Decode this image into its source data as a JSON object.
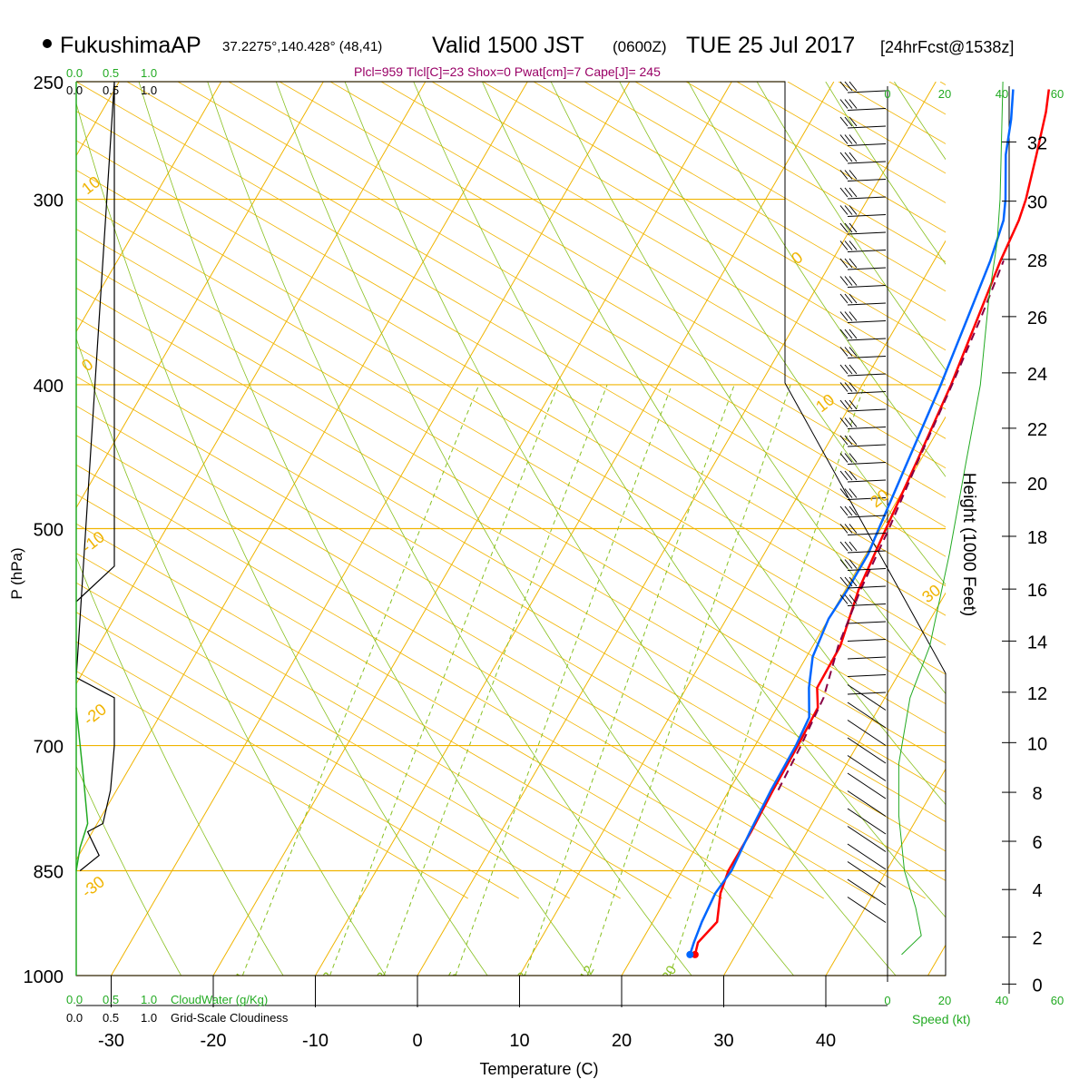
{
  "header": {
    "station": "FukushimaAP",
    "coords": "37.2275°,140.428° (48,41)",
    "valid_prefix": "Valid 1500 JST",
    "valid_z": "(0600Z)",
    "valid_date": "TUE 25 Jul 2017",
    "forecast": "[24hrFcst@1538z]",
    "indices": "Plcl=959 Tlcl[C]=23 Shox=0 Pwat[cm]=7 Cape[J]= 245"
  },
  "labels": {
    "pressure_axis": "P (hPa)",
    "temperature_axis": "Temperature (C)",
    "height_axis": "Height (1000 Feet)",
    "speed_axis": "Speed (kt)",
    "cloudwater": "CloudWater (g/Kg)",
    "cloudiness": "Grid-Scale Cloudiness"
  },
  "cloud_scale": {
    "top_green": [
      "0.0",
      "0.5",
      "1.0"
    ],
    "top_black": [
      "0.0",
      "0.5",
      "1.0"
    ],
    "bottom_green": [
      "0.0",
      "0.5",
      "1.0"
    ],
    "bottom_black": [
      "0.0",
      "0.5",
      "1.0"
    ]
  },
  "speed_ticks": [
    "0",
    "20",
    "40",
    "60"
  ],
  "colors": {
    "isotherm": "#f0b400",
    "dry_adiabat": "#88c020",
    "mixing_ratio": "#88c020",
    "temperature": "#ff0000",
    "dewpoint": "#0066ff",
    "parcel": "#880044",
    "cloudwater": "#22aa22",
    "indices": "#990066"
  },
  "chart_data": {
    "type": "line",
    "title": "FukushimaAP Valid 1500 JST (0600Z) TUE 25 Jul 2017",
    "xlabel": "Temperature (C)",
    "ylabel": "P (hPa)",
    "xlim": [
      -35,
      45
    ],
    "ylim": [
      1000,
      250
    ],
    "y_scale": "log",
    "x_ticks": [
      "-30",
      "-20",
      "-10",
      "0",
      "10",
      "20",
      "30",
      "40"
    ],
    "y_ticks": [
      "250",
      "300",
      "400",
      "500",
      "700",
      "850",
      "1000"
    ],
    "height_ticks": [
      "0",
      "2",
      "4",
      "6",
      "8",
      "10",
      "12",
      "14",
      "16",
      "18",
      "20",
      "22",
      "24",
      "26",
      "28",
      "30",
      "32"
    ],
    "isotherm_labels": [
      "10",
      "0",
      "-10",
      "-20",
      "-30",
      "0",
      "10",
      "20",
      "30"
    ],
    "mixing_ratio_labels": [
      "1",
      "2",
      "3",
      "5",
      "8",
      "12",
      "20"
    ],
    "series": [
      {
        "name": "Temperature",
        "points": [
          [
            26.0,
            968
          ],
          [
            25.6,
            950
          ],
          [
            26.3,
            920
          ],
          [
            25.0,
            880
          ],
          [
            24.5,
            850
          ],
          [
            24.5,
            800
          ],
          [
            24.3,
            750
          ],
          [
            24.2,
            700
          ],
          [
            24.0,
            660
          ],
          [
            22.8,
            640
          ],
          [
            22.7,
            600
          ],
          [
            21.3,
            550
          ],
          [
            20.5,
            500
          ],
          [
            19.7,
            450
          ],
          [
            18.7,
            400
          ],
          [
            17.5,
            360
          ],
          [
            16.5,
            330
          ],
          [
            16.0,
            310
          ],
          [
            15.5,
            300
          ],
          [
            14.0,
            280
          ],
          [
            12.5,
            262
          ],
          [
            11.5,
            253
          ]
        ]
      },
      {
        "name": "Dewpoint",
        "points": [
          [
            25.5,
            968
          ],
          [
            25.2,
            950
          ],
          [
            24.8,
            920
          ],
          [
            24.5,
            880
          ],
          [
            24.8,
            850
          ],
          [
            24.4,
            800
          ],
          [
            24.1,
            750
          ],
          [
            24.0,
            700
          ],
          [
            23.7,
            670
          ],
          [
            22.0,
            640
          ],
          [
            20.6,
            610
          ],
          [
            20.0,
            575
          ],
          [
            20.2,
            550
          ],
          [
            20.2,
            520
          ],
          [
            19.8,
            500
          ],
          [
            18.8,
            450
          ],
          [
            17.7,
            400
          ],
          [
            16.5,
            360
          ],
          [
            15.5,
            330
          ],
          [
            14.5,
            310
          ],
          [
            13.5,
            300
          ],
          [
            11.0,
            280
          ],
          [
            9.5,
            265
          ],
          [
            8.0,
            253
          ]
        ]
      },
      {
        "name": "Parcel",
        "points": [
          [
            24.8,
            750
          ],
          [
            24.5,
            700
          ],
          [
            24.0,
            650
          ],
          [
            22.5,
            600
          ],
          [
            21.5,
            550
          ],
          [
            20.8,
            500
          ],
          [
            19.8,
            450
          ],
          [
            18.8,
            400
          ],
          [
            17.8,
            360
          ],
          [
            16.8,
            330
          ]
        ]
      }
    ],
    "cloudiness": [
      [
        0.0,
        560
      ],
      [
        0.5,
        530
      ],
      [
        0.5,
        250
      ],
      [
        0.0,
        630
      ],
      [
        0.5,
        650
      ],
      [
        0.5,
        700
      ],
      [
        0.45,
        750
      ],
      [
        0.35,
        790
      ],
      [
        0.15,
        800
      ],
      [
        0.3,
        830
      ],
      [
        0.05,
        850
      ]
    ],
    "cloudwater": [
      [
        0.0,
        660
      ],
      [
        0.1,
        740
      ],
      [
        0.15,
        790
      ],
      [
        0.05,
        820
      ],
      [
        0.0,
        850
      ]
    ],
    "wind_speed_profile": [
      [
        5,
        968
      ],
      [
        12,
        940
      ],
      [
        10,
        900
      ],
      [
        6,
        850
      ],
      [
        4,
        780
      ],
      [
        4,
        720
      ],
      [
        8,
        650
      ],
      [
        15,
        600
      ],
      [
        22,
        520
      ],
      [
        28,
        450
      ],
      [
        33,
        400
      ],
      [
        36,
        350
      ],
      [
        39,
        320
      ],
      [
        40,
        300
      ],
      [
        41,
        250
      ]
    ]
  }
}
